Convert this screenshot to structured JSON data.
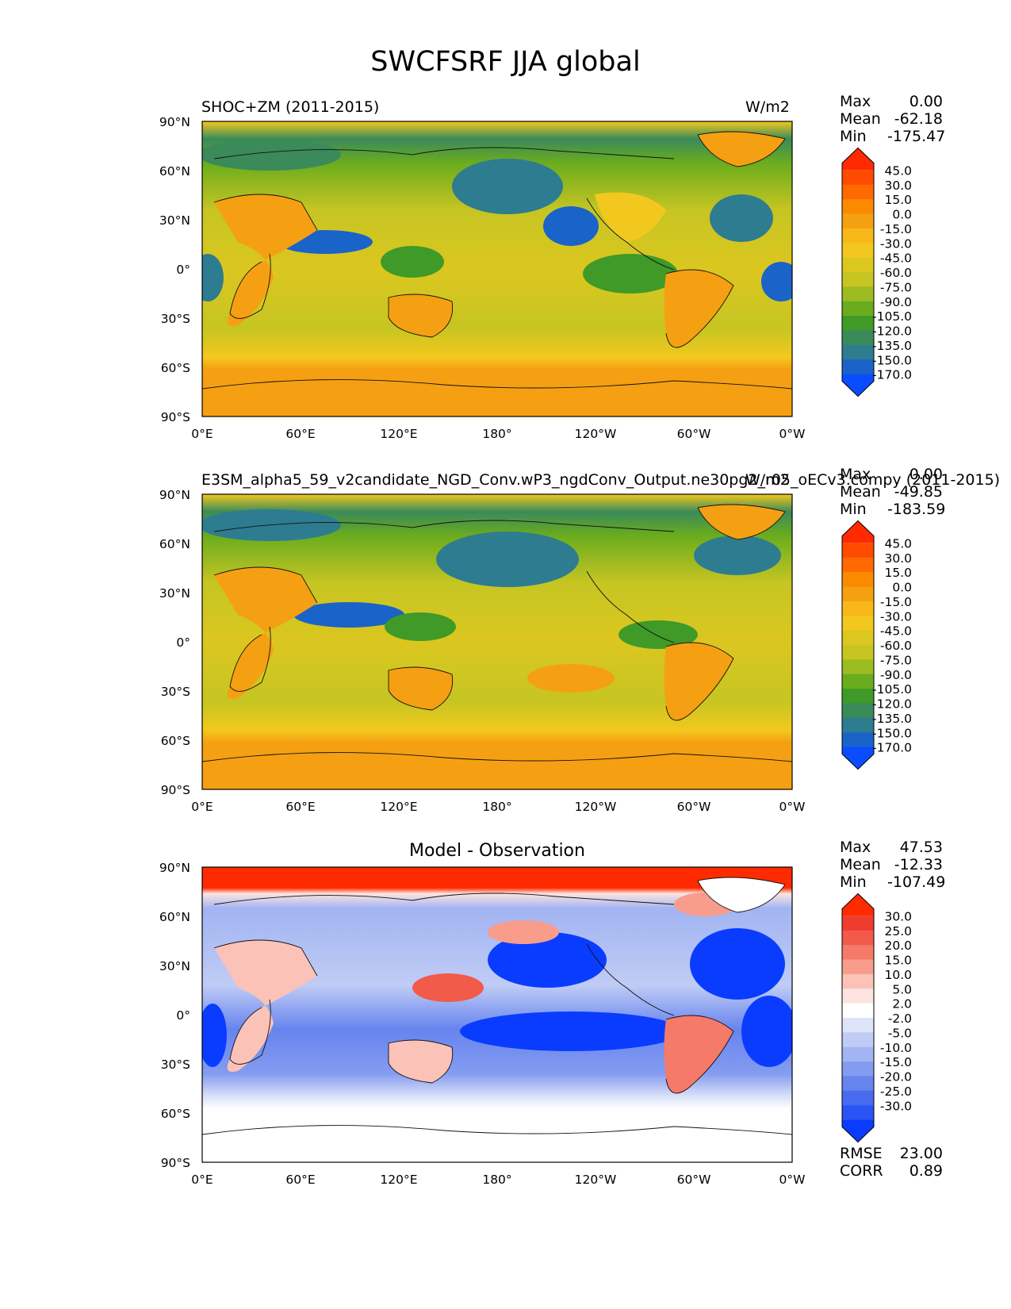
{
  "figure": {
    "title": "SWCFSRF JJA global"
  },
  "lat_ticks": [
    "90°N",
    "60°N",
    "30°N",
    "0°",
    "30°S",
    "60°S",
    "90°S"
  ],
  "lon_ticks": [
    "0°E",
    "60°E",
    "120°E",
    "180°",
    "120°W",
    "60°W",
    "0°W"
  ],
  "panels": [
    {
      "title": "SHOC+ZM (2011-2015)",
      "units": "W/m2",
      "stats": {
        "max_label": "Max",
        "max": "0.00",
        "mean_label": "Mean",
        "mean": "-62.18",
        "min_label": "Min",
        "min": "-175.47"
      },
      "colorbar": {
        "labels": [
          "45.0",
          "30.0",
          "15.0",
          "0.0",
          "-15.0",
          "-30.0",
          "-45.0",
          "-60.0",
          "-75.0",
          "-90.0",
          "-105.0",
          "-120.0",
          "-135.0",
          "-150.0",
          "-170.0"
        ],
        "colors": [
          "#ff2a00",
          "#ff4a00",
          "#ff6a00",
          "#fb8a00",
          "#f5a012",
          "#f8b81a",
          "#f3c81e",
          "#dcc620",
          "#c6c522",
          "#9cbc22",
          "#6aac1e",
          "#3f9a28",
          "#3a8a5a",
          "#2e7c90",
          "#1a63c8",
          "#0a4cff"
        ]
      }
    },
    {
      "title": "E3SM_alpha5_59_v2candidate_NGD_Conv.wP3_ngdConv_Output.ne30pg2_r05_oECv3.compy (2011-2015)",
      "units": "W/m2",
      "stats": {
        "max_label": "Max",
        "max": "0.00",
        "mean_label": "Mean",
        "mean": "-49.85",
        "min_label": "Min",
        "min": "-183.59"
      },
      "colorbar": {
        "labels": [
          "45.0",
          "30.0",
          "15.0",
          "0.0",
          "-15.0",
          "-30.0",
          "-45.0",
          "-60.0",
          "-75.0",
          "-90.0",
          "-105.0",
          "-120.0",
          "-135.0",
          "-150.0",
          "-170.0"
        ],
        "colors": [
          "#ff2a00",
          "#ff4a00",
          "#ff6a00",
          "#fb8a00",
          "#f5a012",
          "#f8b81a",
          "#f3c81e",
          "#dcc620",
          "#c6c522",
          "#9cbc22",
          "#6aac1e",
          "#3f9a28",
          "#3a8a5a",
          "#2e7c90",
          "#1a63c8",
          "#0a4cff"
        ]
      }
    },
    {
      "title": "Model - Observation",
      "units": "",
      "stats": {
        "max_label": "Max",
        "max": "47.53",
        "mean_label": "Mean",
        "mean": "-12.33",
        "min_label": "Min",
        "min": "-107.49"
      },
      "colorbar": {
        "labels": [
          "30.0",
          "25.0",
          "20.0",
          "15.0",
          "10.0",
          "5.0",
          "2.0",
          "-2.0",
          "-5.0",
          "-10.0",
          "-15.0",
          "-20.0",
          "-25.0",
          "-30.0"
        ],
        "colors": [
          "#ff2a00",
          "#f03c2e",
          "#f25a4a",
          "#f57a6a",
          "#f89c8c",
          "#fbc2b8",
          "#fde4e0",
          "#ffffff",
          "#dde4f8",
          "#c0ccf5",
          "#a2b4f2",
          "#849cf0",
          "#6684ee",
          "#486cf0",
          "#2a54f4",
          "#0a3cff"
        ]
      },
      "rmse_label": "RMSE",
      "rmse": "23.00",
      "corr_label": "CORR",
      "corr": "0.89"
    }
  ]
}
